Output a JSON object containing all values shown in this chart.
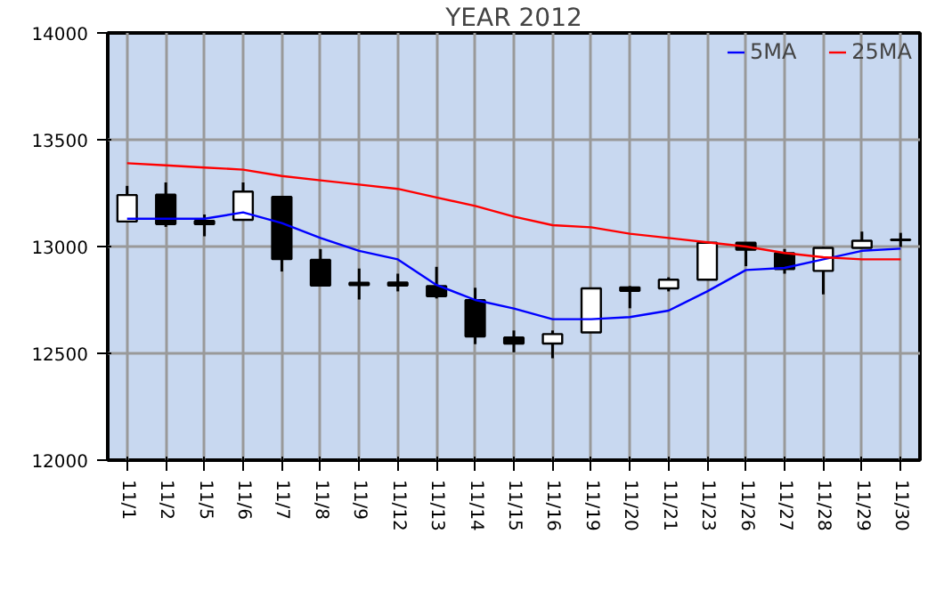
{
  "chart_data": {
    "type": "candlestick",
    "title": "YEAR 2012",
    "categories": [
      "11/1",
      "11/2",
      "11/5",
      "11/6",
      "11/7",
      "11/8",
      "11/9",
      "11/12",
      "11/13",
      "11/14",
      "11/15",
      "11/16",
      "11/19",
      "11/20",
      "11/21",
      "11/23",
      "11/26",
      "11/27",
      "11/28",
      "11/29",
      "11/30"
    ],
    "ohlc": [
      [
        13117,
        13284,
        13117,
        13241
      ],
      [
        13243,
        13300,
        13092,
        13105
      ],
      [
        13120,
        13150,
        13048,
        13105
      ],
      [
        13125,
        13300,
        13125,
        13257
      ],
      [
        13232,
        13232,
        12883,
        12941
      ],
      [
        12938,
        12988,
        12818,
        12818
      ],
      [
        12830,
        12897,
        12752,
        12820
      ],
      [
        12831,
        12873,
        12790,
        12818
      ],
      [
        12815,
        12905,
        12757,
        12768
      ],
      [
        12749,
        12807,
        12543,
        12579
      ],
      [
        12574,
        12607,
        12505,
        12546
      ],
      [
        12546,
        12607,
        12477,
        12590
      ],
      [
        12598,
        12804,
        12598,
        12804
      ],
      [
        12809,
        12815,
        12711,
        12793
      ],
      [
        12804,
        12856,
        12790,
        12845
      ],
      [
        12845,
        13018,
        12845,
        13018
      ],
      [
        13018,
        13018,
        12908,
        12985
      ],
      [
        12969,
        12988,
        12873,
        12895
      ],
      [
        12886,
        12998,
        12776,
        12994
      ],
      [
        12994,
        13070,
        12994,
        13027
      ],
      [
        13030,
        13064,
        12998,
        13032
      ]
    ],
    "colors": [
      "#ffffff",
      "#000000",
      "#000000",
      "#ffffff",
      "#000000",
      "#000000",
      "#000000",
      "#000000",
      "#000000",
      "#000000",
      "#000000",
      "#ffffff",
      "#ffffff",
      "#000000",
      "#ffffff",
      "#ffffff",
      "#000000",
      "#000000",
      "#ffffff",
      "#ffffff",
      "#ffffff"
    ],
    "series": [
      {
        "name": "5MA",
        "type": "line",
        "color": "#0000ff",
        "values": [
          13130,
          13130,
          13130,
          13160,
          13110,
          13040,
          12980,
          12940,
          12820,
          12750,
          12710,
          12660,
          12660,
          12670,
          12700,
          12790,
          12890,
          12900,
          12940,
          12980,
          12990
        ]
      },
      {
        "name": "25MA",
        "type": "line",
        "color": "#ff0000",
        "values": [
          13390,
          13380,
          13370,
          13360,
          13330,
          13310,
          13290,
          13270,
          13230,
          13190,
          13140,
          13100,
          13090,
          13060,
          13040,
          13020,
          13000,
          12970,
          12950,
          12940,
          12940
        ]
      }
    ],
    "ylim": [
      12000,
      14000
    ],
    "yticks": [
      12000,
      12500,
      13000,
      13500,
      14000
    ],
    "grid": true,
    "legend": "top right"
  }
}
